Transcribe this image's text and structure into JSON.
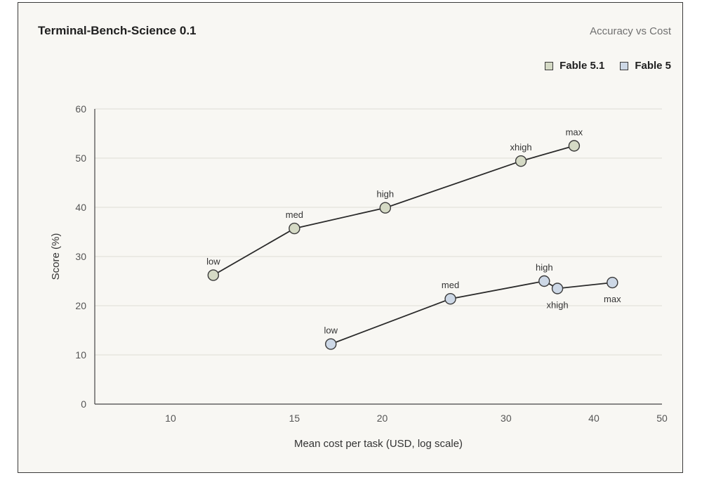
{
  "chart_data": {
    "type": "line",
    "title": "Terminal-Bench-Science 0.1",
    "subtitle": "Accuracy vs Cost",
    "xlabel": "Mean cost per task (USD, log scale)",
    "ylabel": "Score (%)",
    "x_scale": "log",
    "xlim": [
      7.8,
      50
    ],
    "ylim": [
      0,
      60
    ],
    "x_ticks": [
      10,
      15,
      20,
      30,
      40,
      50
    ],
    "y_ticks": [
      0,
      10,
      20,
      30,
      40,
      50,
      60
    ],
    "grid": "horizontal",
    "legend_position": "top-right",
    "series": [
      {
        "name": "Fable 5.1",
        "color": "#d5dac5",
        "points": [
          {
            "label": "low",
            "x": 11.5,
            "y": 26.2
          },
          {
            "label": "med",
            "x": 15.0,
            "y": 35.7
          },
          {
            "label": "high",
            "x": 20.2,
            "y": 39.9
          },
          {
            "label": "xhigh",
            "x": 31.5,
            "y": 49.4
          },
          {
            "label": "max",
            "x": 37.5,
            "y": 52.5
          }
        ]
      },
      {
        "name": "Fable 5",
        "color": "#cdd8e6",
        "points": [
          {
            "label": "low",
            "x": 16.9,
            "y": 12.2
          },
          {
            "label": "med",
            "x": 25.0,
            "y": 21.4
          },
          {
            "label": "high",
            "x": 34.0,
            "y": 25.0
          },
          {
            "label": "xhigh",
            "x": 35.5,
            "y": 23.5
          },
          {
            "label": "max",
            "x": 42.5,
            "y": 24.7
          }
        ]
      }
    ]
  }
}
